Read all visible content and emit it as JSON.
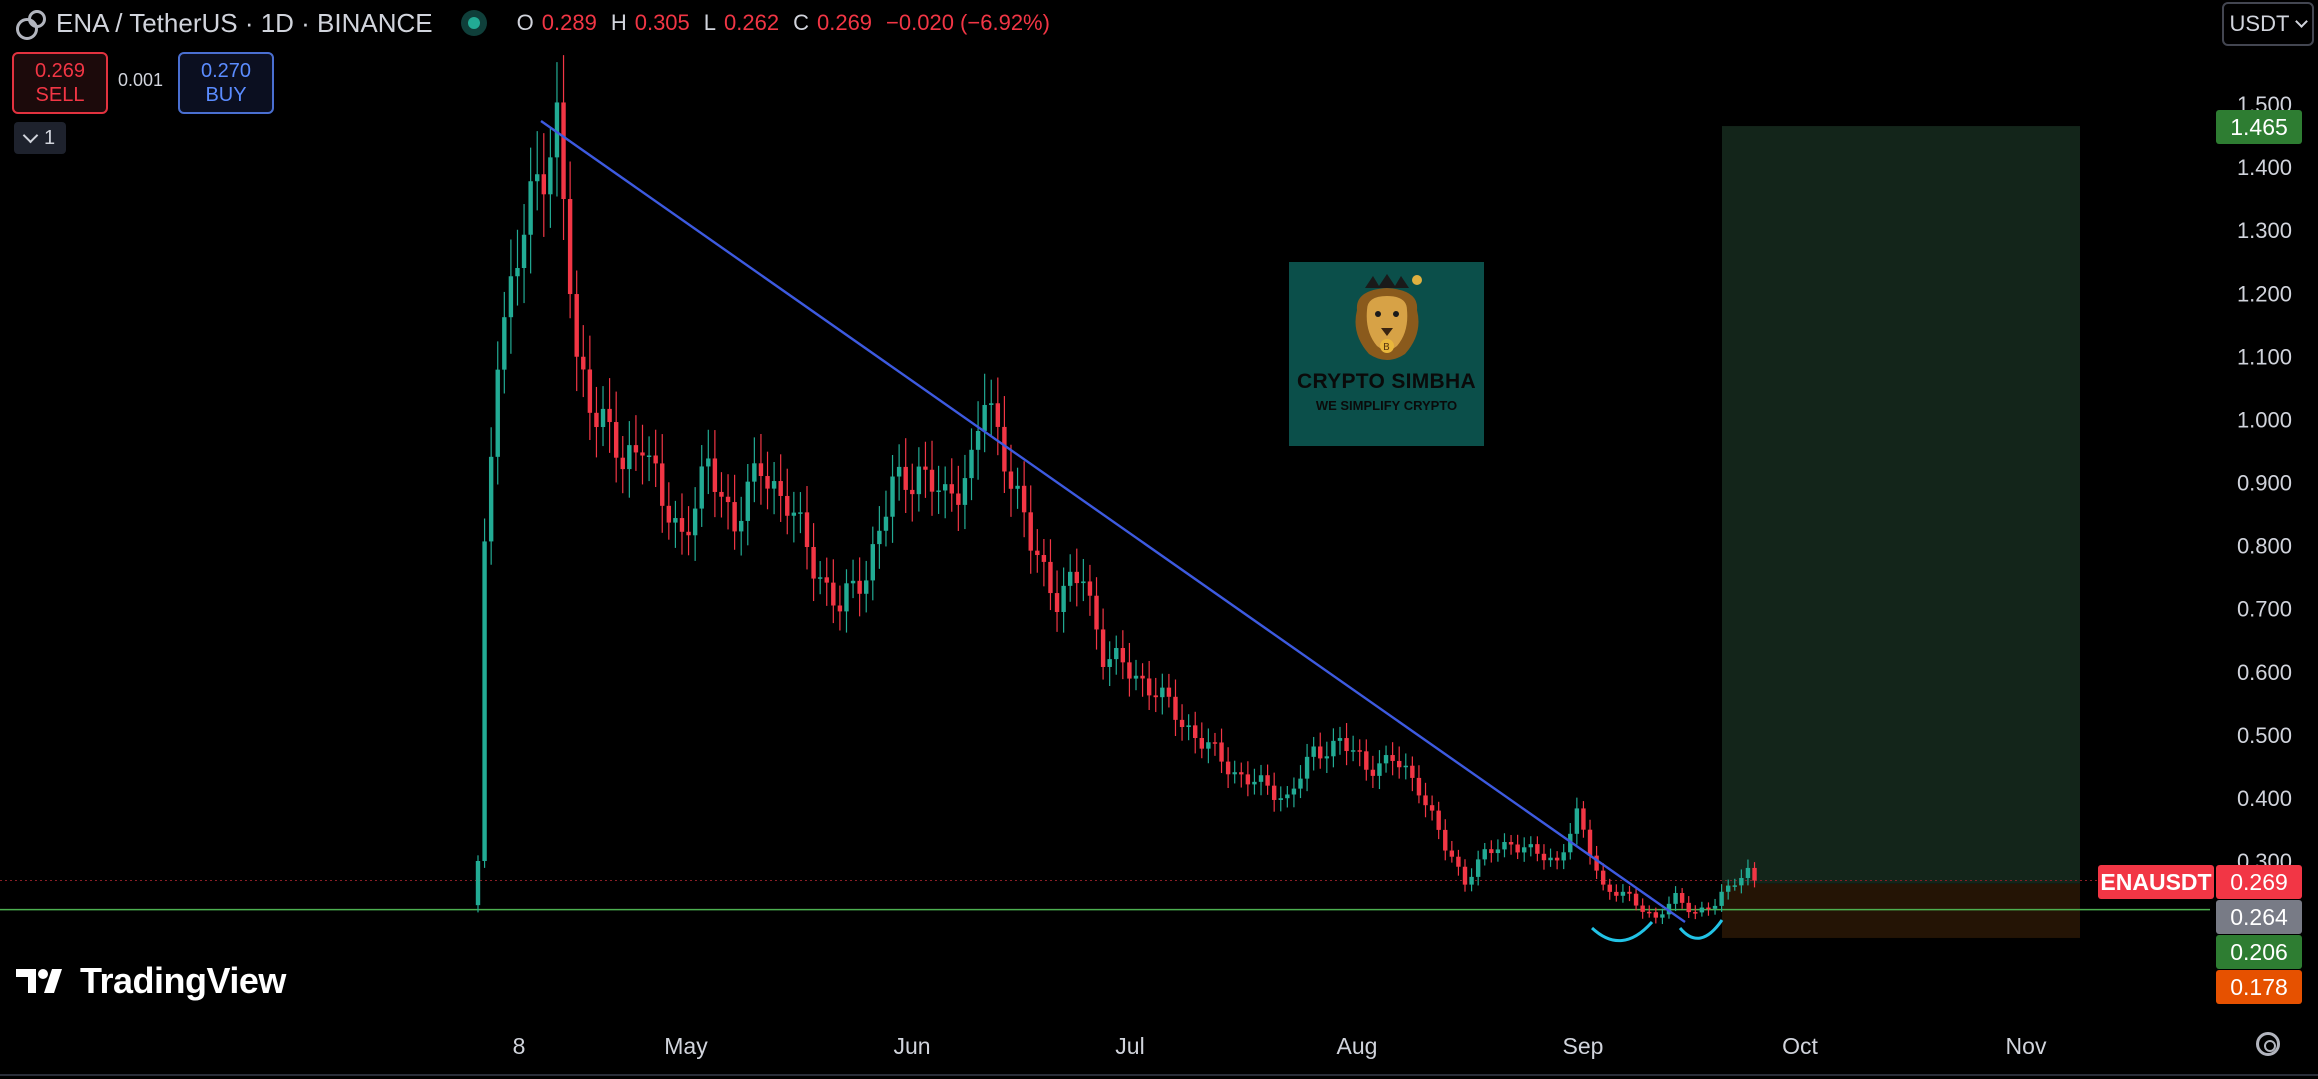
{
  "header": {
    "symbol_title": "ENA / TetherUS · 1D · BINANCE",
    "ohlc": {
      "open_label": "O",
      "open": "0.289",
      "high_label": "H",
      "high": "0.305",
      "low_label": "L",
      "low": "0.262",
      "close_label": "C",
      "close": "0.269",
      "change": "−0.020 (−6.92%)"
    }
  },
  "trade": {
    "sell_price": "0.269",
    "sell_label": "SELL",
    "spread": "0.001",
    "buy_price": "0.270",
    "buy_label": "BUY"
  },
  "interval_selector": "1",
  "currency_selector": "USDT",
  "price_axis": {
    "ticks": [
      "1.500",
      "1.400",
      "1.300",
      "1.200",
      "1.100",
      "1.000",
      "0.900",
      "0.800",
      "0.700",
      "0.600",
      "0.500",
      "0.400",
      "0.300"
    ]
  },
  "time_axis": {
    "labels": [
      "8",
      "May",
      "Jun",
      "Jul",
      "Aug",
      "Sep",
      "Oct",
      "Nov"
    ]
  },
  "price_tags": {
    "target": "1.465",
    "symbol": "ENAUSDT",
    "last": "0.269",
    "entry": "0.264",
    "green_line": "0.206",
    "stop": "0.178"
  },
  "watermark": {
    "title": "CRYPTO SIMBHA",
    "subtitle": "WE SIMPLIFY CRYPTO"
  },
  "brand": "TradingView",
  "colors": {
    "up": "#22ab94",
    "down": "#f23645",
    "trendline": "#3d5ae0",
    "profit_zone": "#13251a",
    "loss_zone": "#241405",
    "target_tag": "#2e7d32",
    "stop_tag": "#e65100"
  }
}
